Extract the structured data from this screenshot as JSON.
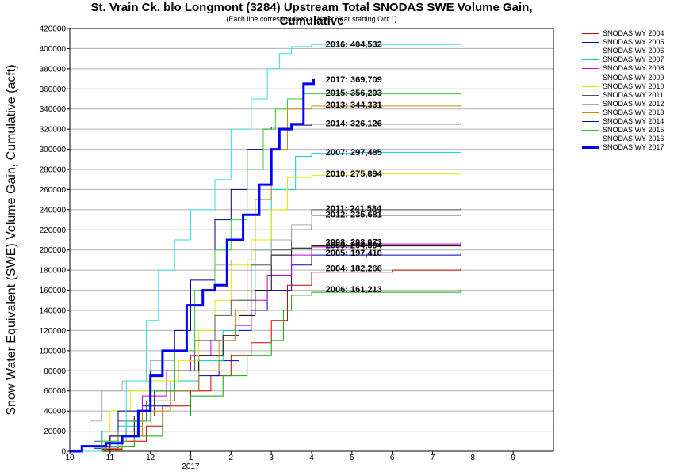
{
  "chart_data": {
    "type": "line",
    "title": "St. Vrain Ck. blo Longmont (3284) Upstream Total SNODAS SWE Volume Gain, Cumulative",
    "subtitle": "(Each line corresponds to a Water Year starting Oct 1)",
    "ylabel": "Snow Water Equivalent (SWE) Volume Gain, Cumulative (acft)",
    "xlabel": "",
    "x_unit": "month",
    "x_ticks": [
      "10",
      "11",
      "12",
      "1",
      "2",
      "3",
      "4",
      "5",
      "6",
      "7",
      "8",
      "9"
    ],
    "x_sub_label": "2017",
    "xlim": [
      0,
      12
    ],
    "ylim": [
      0,
      420000
    ],
    "y_ticks": [
      0,
      20000,
      40000,
      60000,
      80000,
      100000,
      120000,
      140000,
      160000,
      180000,
      200000,
      220000,
      240000,
      260000,
      280000,
      300000,
      320000,
      340000,
      360000,
      380000,
      400000,
      420000
    ],
    "grid": "horizontal",
    "legend_position": "right",
    "series": [
      {
        "name": "SNODAS WY 2004",
        "color": "#cc0000",
        "end_label": "2004: 182,266",
        "x": [
          0,
          0.8,
          1.3,
          1.9,
          2.3,
          3.0,
          3.5,
          4.0,
          4.5,
          5.0,
          5.4,
          6.0,
          8.0,
          9.7
        ],
        "y": [
          0,
          2000,
          10000,
          25000,
          45000,
          60000,
          75000,
          95000,
          108000,
          130000,
          165000,
          178000,
          180000,
          182266
        ]
      },
      {
        "name": "SNODAS WY 2005",
        "color": "#0000cc",
        "end_label": "2005: 197,410",
        "x": [
          0,
          0.6,
          1.2,
          1.8,
          2.5,
          3.2,
          3.7,
          4.2,
          4.5,
          4.9,
          5.5,
          6.0,
          9.7
        ],
        "y": [
          0,
          3000,
          20000,
          45000,
          60000,
          75000,
          90000,
          120000,
          140000,
          160000,
          185000,
          195000,
          197410
        ]
      },
      {
        "name": "SNODAS WY 2006",
        "color": "#00aa00",
        "end_label": "2006: 161,213",
        "x": [
          0,
          0.9,
          1.6,
          2.3,
          3.0,
          3.8,
          4.4,
          5.0,
          5.3,
          5.5,
          6.0,
          9.7
        ],
        "y": [
          0,
          5000,
          15000,
          35000,
          55000,
          75000,
          95000,
          110000,
          140000,
          155000,
          158000,
          161213
        ]
      },
      {
        "name": "SNODAS WY 2007",
        "color": "#00cccc",
        "end_label": "2007: 297,485",
        "x": [
          0,
          0.8,
          1.2,
          1.8,
          2.5,
          3.2,
          3.8,
          4.2,
          4.6,
          5.0,
          5.6,
          6.0,
          7.0,
          9.7
        ],
        "y": [
          0,
          5000,
          25000,
          50000,
          70000,
          90000,
          120000,
          150000,
          200000,
          260000,
          293000,
          296000,
          297000,
          297485
        ]
      },
      {
        "name": "SNODAS WY 2008",
        "color": "#cc00cc",
        "end_label": "2008: 208,073",
        "x": [
          0,
          0.6,
          1.0,
          1.4,
          1.8,
          2.4,
          3.0,
          3.5,
          4.1,
          4.5,
          4.9,
          5.5,
          6.0,
          7.0,
          9.7
        ],
        "y": [
          0,
          5000,
          15000,
          30000,
          55000,
          80000,
          95000,
          110000,
          125000,
          150000,
          175000,
          195000,
          203000,
          206000,
          208073
        ]
      },
      {
        "name": "SNODAS WY 2009",
        "color": "#000000",
        "end_label": "2009: 204,894",
        "x": [
          0,
          1.0,
          1.6,
          2.1,
          2.6,
          3.2,
          3.8,
          4.2,
          4.6,
          5.0,
          5.5,
          6.0,
          9.7
        ],
        "y": [
          0,
          15000,
          35000,
          60000,
          80000,
          95000,
          115000,
          135000,
          160000,
          195000,
          202000,
          204000,
          204894
        ]
      },
      {
        "name": "SNODAS WY 2010",
        "color": "#e6e600",
        "end_label": "2010: 275,894",
        "x": [
          0,
          0.7,
          1.0,
          1.5,
          2.0,
          2.7,
          3.2,
          3.6,
          4.0,
          4.5,
          5.0,
          5.4,
          6.0,
          7.0,
          9.7
        ],
        "y": [
          0,
          20000,
          40000,
          60000,
          70000,
          90000,
          120000,
          150000,
          185000,
          210000,
          240000,
          272000,
          274000,
          275500,
          275894
        ]
      },
      {
        "name": "SNODAS WY 2011",
        "color": "#555555",
        "end_label": "2011: 241,584",
        "x": [
          0,
          0.6,
          1.2,
          1.9,
          2.6,
          3.1,
          3.6,
          4.0,
          4.5,
          5.0,
          5.5,
          6.0,
          9.7
        ],
        "y": [
          0,
          10000,
          30000,
          50000,
          80000,
          110000,
          135000,
          150000,
          185000,
          200000,
          220000,
          240000,
          241584
        ]
      },
      {
        "name": "SNODAS WY 2012",
        "color": "#aaaaaa",
        "end_label": "2012: 235,681",
        "x": [
          0,
          0.5,
          0.8,
          1.3,
          2.0,
          2.6,
          3.0,
          3.6,
          4.0,
          4.5,
          5.0,
          5.5,
          6.0,
          9.7
        ],
        "y": [
          0,
          30000,
          60000,
          70000,
          90000,
          120000,
          160000,
          185000,
          190000,
          200000,
          210000,
          225000,
          234000,
          235681
        ]
      },
      {
        "name": "SNODAS WY 2013",
        "color": "#cc8800",
        "end_label": "2013: 344,331",
        "x": [
          0,
          0.8,
          1.3,
          1.8,
          2.5,
          3.2,
          3.7,
          4.1,
          4.4,
          4.6,
          5.0,
          5.4,
          6.0,
          9.7
        ],
        "y": [
          0,
          3000,
          15000,
          40000,
          60000,
          80000,
          110000,
          140000,
          190000,
          250000,
          300000,
          340000,
          343000,
          344331
        ]
      },
      {
        "name": "SNODAS WY 2014",
        "color": "#000088",
        "end_label": "2014: 326,126",
        "x": [
          0,
          0.8,
          1.2,
          2.0,
          2.6,
          3.0,
          3.6,
          4.0,
          4.4,
          4.8,
          5.0,
          5.5,
          6.0,
          9.7
        ],
        "y": [
          0,
          20000,
          40000,
          80000,
          120000,
          170000,
          230000,
          260000,
          300000,
          320000,
          322000,
          324000,
          325000,
          326126
        ]
      },
      {
        "name": "SNODAS WY 2015",
        "color": "#33cc33",
        "end_label": "2015: 356,293",
        "x": [
          0,
          0.8,
          1.4,
          2.0,
          2.6,
          3.1,
          3.6,
          4.0,
          4.4,
          4.8,
          5.1,
          5.4,
          5.8,
          9.7
        ],
        "y": [
          0,
          10000,
          30000,
          60000,
          100000,
          160000,
          200000,
          230000,
          280000,
          320000,
          340000,
          350000,
          355000,
          356293
        ]
      },
      {
        "name": "SNODAS WY 2016",
        "color": "#33dddd",
        "end_label": "2016: 404,532",
        "x": [
          0,
          0.8,
          1.4,
          1.9,
          2.2,
          2.6,
          3.0,
          3.6,
          4.0,
          4.5,
          4.9,
          5.2,
          5.5,
          6.0,
          9.7
        ],
        "y": [
          0,
          20000,
          70000,
          130000,
          180000,
          210000,
          240000,
          270000,
          320000,
          350000,
          380000,
          395000,
          402000,
          404000,
          404532
        ]
      },
      {
        "name": "SNODAS WY 2017",
        "color": "#0000ff",
        "end_label": "2017: 369,709",
        "x": [
          0,
          0.3,
          0.9,
          1.3,
          1.7,
          2.0,
          2.3,
          2.9,
          3.3,
          3.6,
          3.9,
          4.3,
          4.7,
          5.0,
          5.2,
          5.5,
          5.8,
          6.05
        ],
        "y": [
          0,
          5000,
          8000,
          15000,
          40000,
          75000,
          100000,
          145000,
          160000,
          165000,
          210000,
          235000,
          265000,
          300000,
          320000,
          325000,
          365000,
          369709
        ]
      }
    ]
  }
}
